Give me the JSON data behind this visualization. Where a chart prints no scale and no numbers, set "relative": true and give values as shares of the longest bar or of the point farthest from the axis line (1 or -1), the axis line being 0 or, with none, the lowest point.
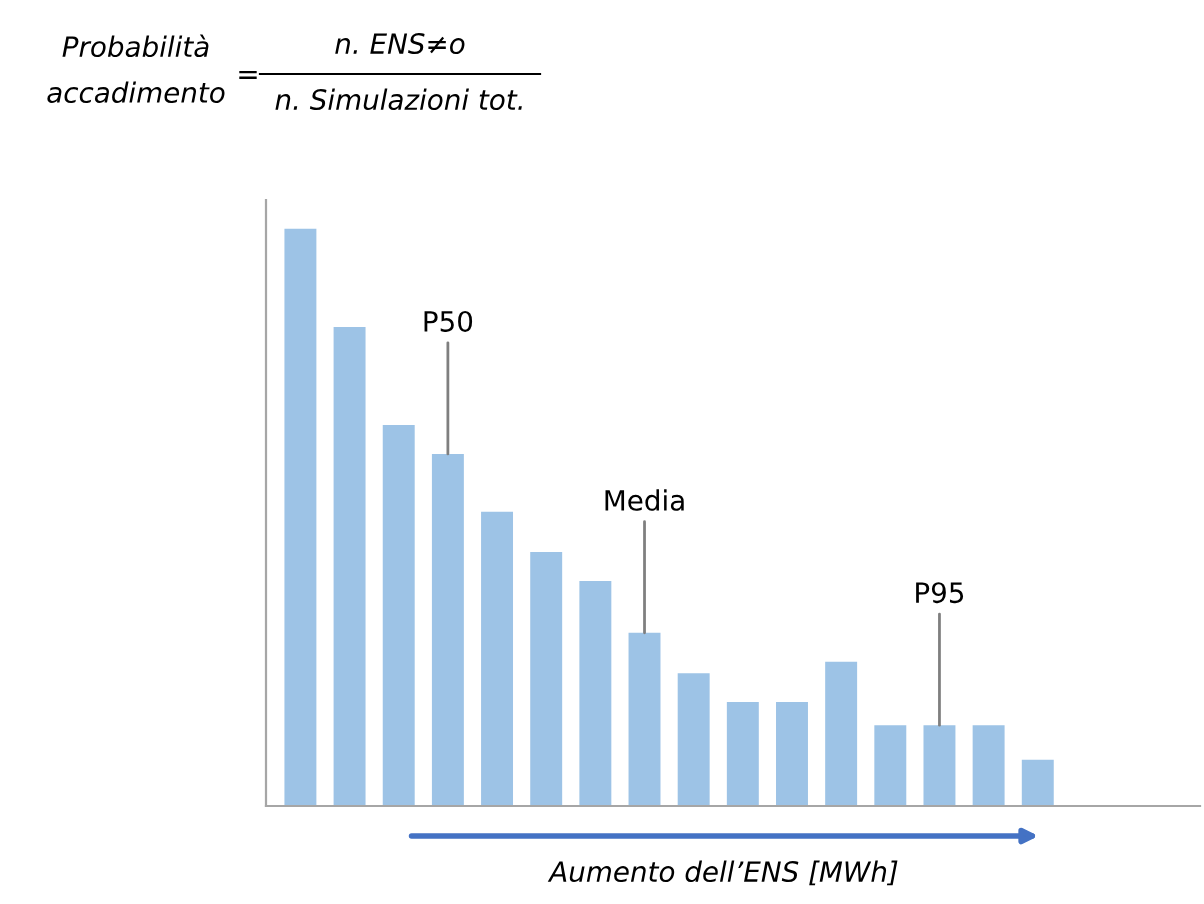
{
  "chart_data": {
    "type": "bar",
    "relative": true,
    "grid": false,
    "legend": false,
    "categories": [
      null,
      null,
      null,
      null,
      null,
      null,
      null,
      null,
      null,
      null,
      null,
      null,
      null,
      null,
      null,
      null
    ],
    "values": [
      1,
      0.83,
      0.66,
      0.61,
      0.51,
      0.44,
      0.39,
      0.3,
      0.23,
      0.18,
      0.18,
      0.25,
      0.14,
      0.14,
      0.14,
      0.08
    ],
    "color": "#9dc3e6",
    "ylabel": "Probabilità\naccadimento",
    "xlabel": "Aumento dell’ENS [MWh]",
    "annotations": [
      "=",
      "n. ENS≠o",
      "n. Simulazioni tot.",
      {
        "text": "P50",
        "y": 0.61
      },
      {
        "text": "Media",
        "y": 0.3
      },
      {
        "text": "P95",
        "y": 0.14
      }
    ]
  }
}
